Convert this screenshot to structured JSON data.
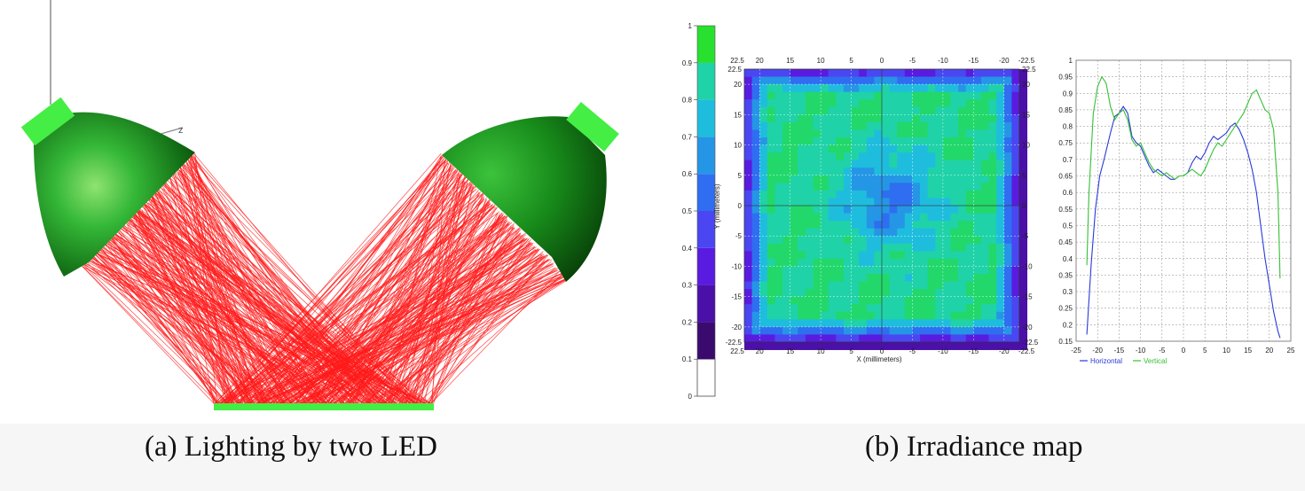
{
  "captions": {
    "a": "(a) Lighting by two LED",
    "b": "(b) Irradiance map"
  },
  "scene": {
    "axis_label": "z"
  },
  "colors": {
    "reflector_light": "#3fd23f",
    "reflector_dark": "#0b4a0b",
    "led": "#44ee44",
    "rays": "#ff1a1a",
    "target": "#44ee44",
    "horizontal": "#2a3ad8",
    "vertical": "#35c035"
  },
  "chart_data": [
    {
      "type": "heatmap",
      "colorbar": {
        "ticks": [
          "1",
          "0.9",
          "0.8",
          "0.7",
          "0.6",
          "0.5",
          "0.4",
          "0.3",
          "0.2",
          "0.1",
          "0"
        ],
        "colors": [
          "#ffffff",
          "#3b0a6e",
          "#4b10a8",
          "#5a1be0",
          "#4a46f2",
          "#2f6ef0",
          "#2596e6",
          "#1fbddd",
          "#20d2a8",
          "#22d86a",
          "#28e02e"
        ]
      },
      "xlabel": "X (millimeters)",
      "ylabel": "Y (millimeters)",
      "x_ticks_top": [
        "22.5",
        "20",
        "15",
        "10",
        "5",
        "0",
        "-5",
        "-10",
        "-15",
        "-20",
        "-22.5"
      ],
      "x_ticks_bottom": [
        "22.5",
        "20",
        "15",
        "10",
        "5",
        "0",
        "-5",
        "-10",
        "-15",
        "-20",
        "-22.5"
      ],
      "y_ticks_left": [
        "22.5",
        "20",
        "15",
        "10",
        "5",
        "0",
        "-5",
        "-10",
        "-15",
        "-20",
        "-22.5"
      ],
      "y_ticks_right": [
        "22.5",
        "20",
        "15",
        "10",
        "5",
        "0",
        "-5",
        "-10",
        "-15",
        "-20",
        "-22.5"
      ],
      "xlim": [
        22.5,
        -22.5
      ],
      "ylim": [
        -22.5,
        22.5
      ]
    },
    {
      "type": "line",
      "xlim": [
        -25,
        25
      ],
      "ylim": [
        0.15,
        1
      ],
      "x_ticks": [
        "-25",
        "-20",
        "-15",
        "-10",
        "-5",
        "0",
        "5",
        "10",
        "15",
        "20",
        "25"
      ],
      "y_ticks": [
        "1",
        "0.95",
        "0.9",
        "0.85",
        "0.8",
        "0.75",
        "0.7",
        "0.65",
        "0.6",
        "0.55",
        "0.5",
        "0.45",
        "0.4",
        "0.35",
        "0.3",
        "0.25",
        "0.2",
        "0.15"
      ],
      "series": [
        {
          "name": "Horizontal",
          "x": [
            -22.5,
            -21.5,
            -20.5,
            -19.5,
            -18.5,
            -17,
            -16,
            -15,
            -14,
            -13,
            -12,
            -11,
            -10,
            -9,
            -8,
            -7,
            -6,
            -5,
            -4,
            -3,
            -2,
            -1,
            0,
            1,
            2,
            3,
            4,
            5,
            6,
            7,
            8,
            9,
            10,
            11,
            12,
            13,
            14,
            15,
            16,
            17,
            18,
            19,
            20,
            21,
            22,
            22.5
          ],
          "y": [
            0.17,
            0.38,
            0.55,
            0.65,
            0.7,
            0.78,
            0.83,
            0.84,
            0.86,
            0.84,
            0.77,
            0.75,
            0.74,
            0.71,
            0.68,
            0.66,
            0.67,
            0.66,
            0.65,
            0.64,
            0.64,
            0.65,
            0.65,
            0.66,
            0.69,
            0.71,
            0.7,
            0.72,
            0.75,
            0.77,
            0.76,
            0.77,
            0.78,
            0.8,
            0.81,
            0.79,
            0.76,
            0.72,
            0.67,
            0.6,
            0.5,
            0.4,
            0.32,
            0.24,
            0.18,
            0.16
          ]
        },
        {
          "name": "Vertical",
          "x": [
            -22.5,
            -22,
            -21,
            -20,
            -19,
            -18,
            -17,
            -16,
            -15,
            -14,
            -13,
            -12,
            -11,
            -10,
            -9,
            -8,
            -7,
            -6,
            -5,
            -4,
            -3,
            -2,
            -1,
            0,
            1,
            2,
            3,
            4,
            5,
            6,
            7,
            8,
            9,
            10,
            11,
            12,
            13,
            14,
            15,
            16,
            17,
            18,
            19,
            20,
            21,
            22,
            22.5
          ],
          "y": [
            0.38,
            0.6,
            0.84,
            0.92,
            0.95,
            0.93,
            0.86,
            0.82,
            0.84,
            0.85,
            0.82,
            0.76,
            0.74,
            0.75,
            0.72,
            0.69,
            0.67,
            0.66,
            0.65,
            0.66,
            0.65,
            0.64,
            0.65,
            0.65,
            0.66,
            0.67,
            0.66,
            0.65,
            0.67,
            0.7,
            0.73,
            0.75,
            0.74,
            0.76,
            0.78,
            0.8,
            0.82,
            0.84,
            0.87,
            0.9,
            0.91,
            0.88,
            0.85,
            0.84,
            0.79,
            0.6,
            0.34
          ]
        }
      ]
    }
  ]
}
